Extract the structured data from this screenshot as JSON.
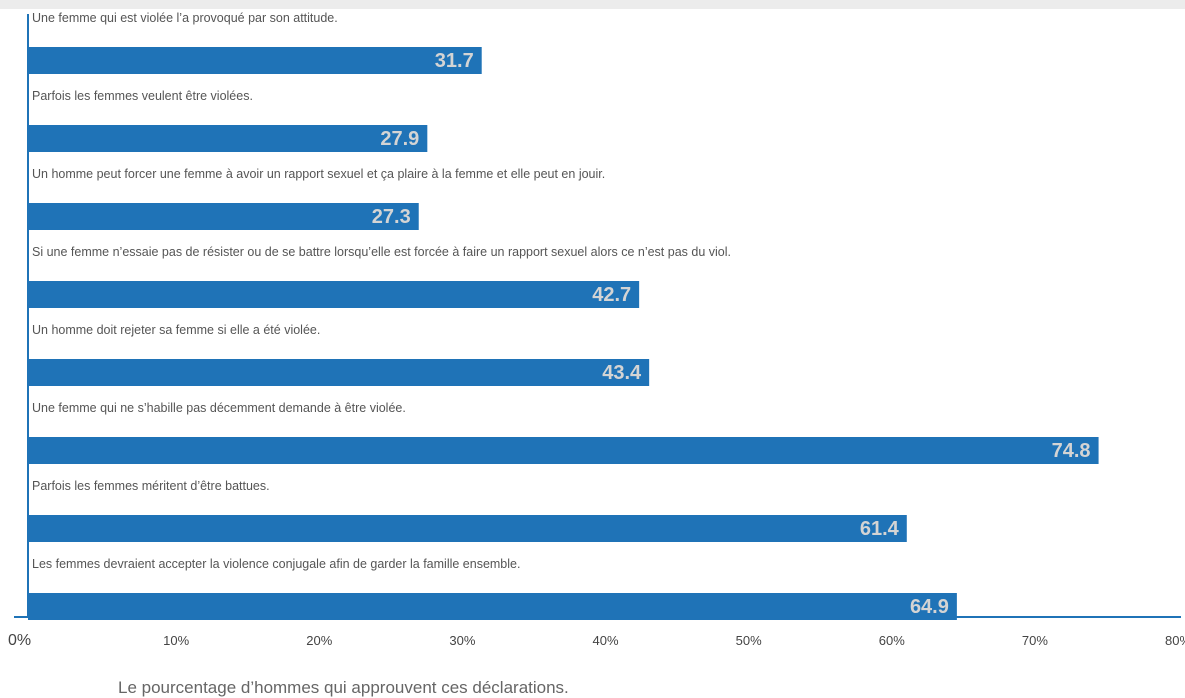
{
  "chart_data": {
    "type": "bar",
    "orientation": "horizontal",
    "categories": [
      "Une femme qui est violée l’a provoqué par son attitude.",
      "Parfois les femmes veulent être violées.",
      "Un homme peut forcer une femme à avoir un rapport sexuel et ça plaire à la femme et  elle peut en jouir.",
      "Si une femme n’essaie pas de résister ou de se battre lorsqu’elle est forcée à faire  un rapport sexuel alors ce n’est pas du viol.",
      "Un homme doit rejeter sa femme si elle a été violée.",
      "Une femme qui ne s’habille pas décemment demande à être violée.",
      "Parfois les femmes méritent d’être battues.",
      "Les femmes devraient accepter la violence conjugale afin de garder la famille ensemble."
    ],
    "values": [
      31.7,
      27.9,
      27.3,
      42.7,
      43.4,
      74.8,
      61.4,
      64.9
    ],
    "value_labels": [
      "31.7",
      "27.9",
      "27.3",
      "42.7",
      "43.4",
      "74.8",
      "61.4",
      "64.9"
    ],
    "xlim": [
      0,
      80
    ],
    "x_ticks": [
      "0%",
      "10%",
      "20%",
      "30%",
      "40%",
      "50%",
      "60%",
      "70%",
      "80%"
    ],
    "xlabel": "Le pourcentage d’hommes qui approuvent ces déclarations.",
    "grid": false,
    "bar_color": "#1f73b7",
    "value_label_color": "#d4d4d4",
    "axis_color": "#1f73b7"
  }
}
